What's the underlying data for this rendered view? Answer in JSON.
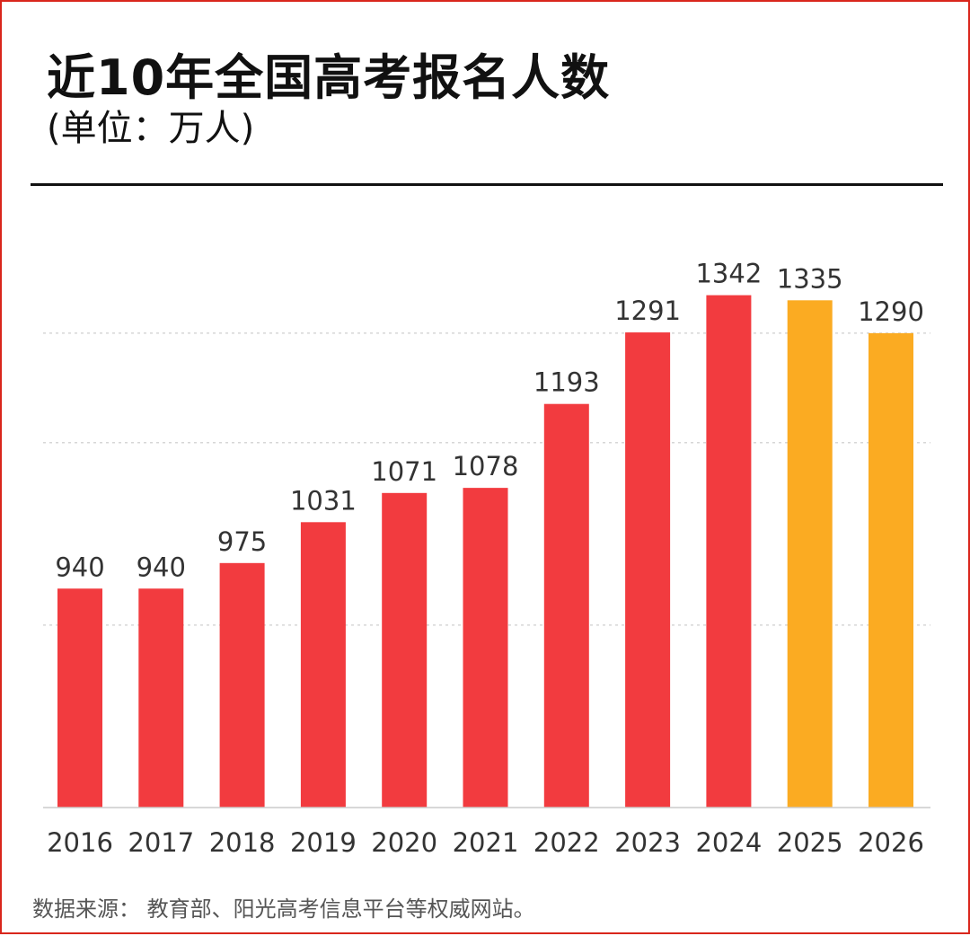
{
  "title": "近10年全国高考报名人数",
  "subtitle": "(单位：万人)",
  "source": "数据来源：  教育部、阳光高考信息平台等权威网站。",
  "colors": {
    "actual": "#f23b3f",
    "projected": "#fbab22",
    "frame": "#d9261c"
  },
  "chart_data": {
    "type": "bar",
    "title": "近10年全国高考报名人数",
    "subtitle": "(单位：万人)",
    "categories": [
      "2016",
      "2017",
      "2018",
      "2019",
      "2020",
      "2021",
      "2022",
      "2023",
      "2024",
      "2025",
      "2026"
    ],
    "values": [
      940,
      940,
      975,
      1031,
      1071,
      1078,
      1193,
      1291,
      1342,
      1335,
      1290
    ],
    "labels": [
      "940",
      "940",
      "975",
      "1031",
      "1071",
      "1078",
      "1193",
      "1291",
      "1342",
      "1335",
      "1290"
    ],
    "bar_colors": [
      "#f23b3f",
      "#f23b3f",
      "#f23b3f",
      "#f23b3f",
      "#f23b3f",
      "#f23b3f",
      "#f23b3f",
      "#f23b3f",
      "#f23b3f",
      "#fbab22",
      "#fbab22"
    ],
    "ylim": [
      640,
      1360
    ],
    "gridlines": [
      890,
      1140,
      1290
    ],
    "grid": "dotted-horizontal",
    "legend": "none"
  }
}
